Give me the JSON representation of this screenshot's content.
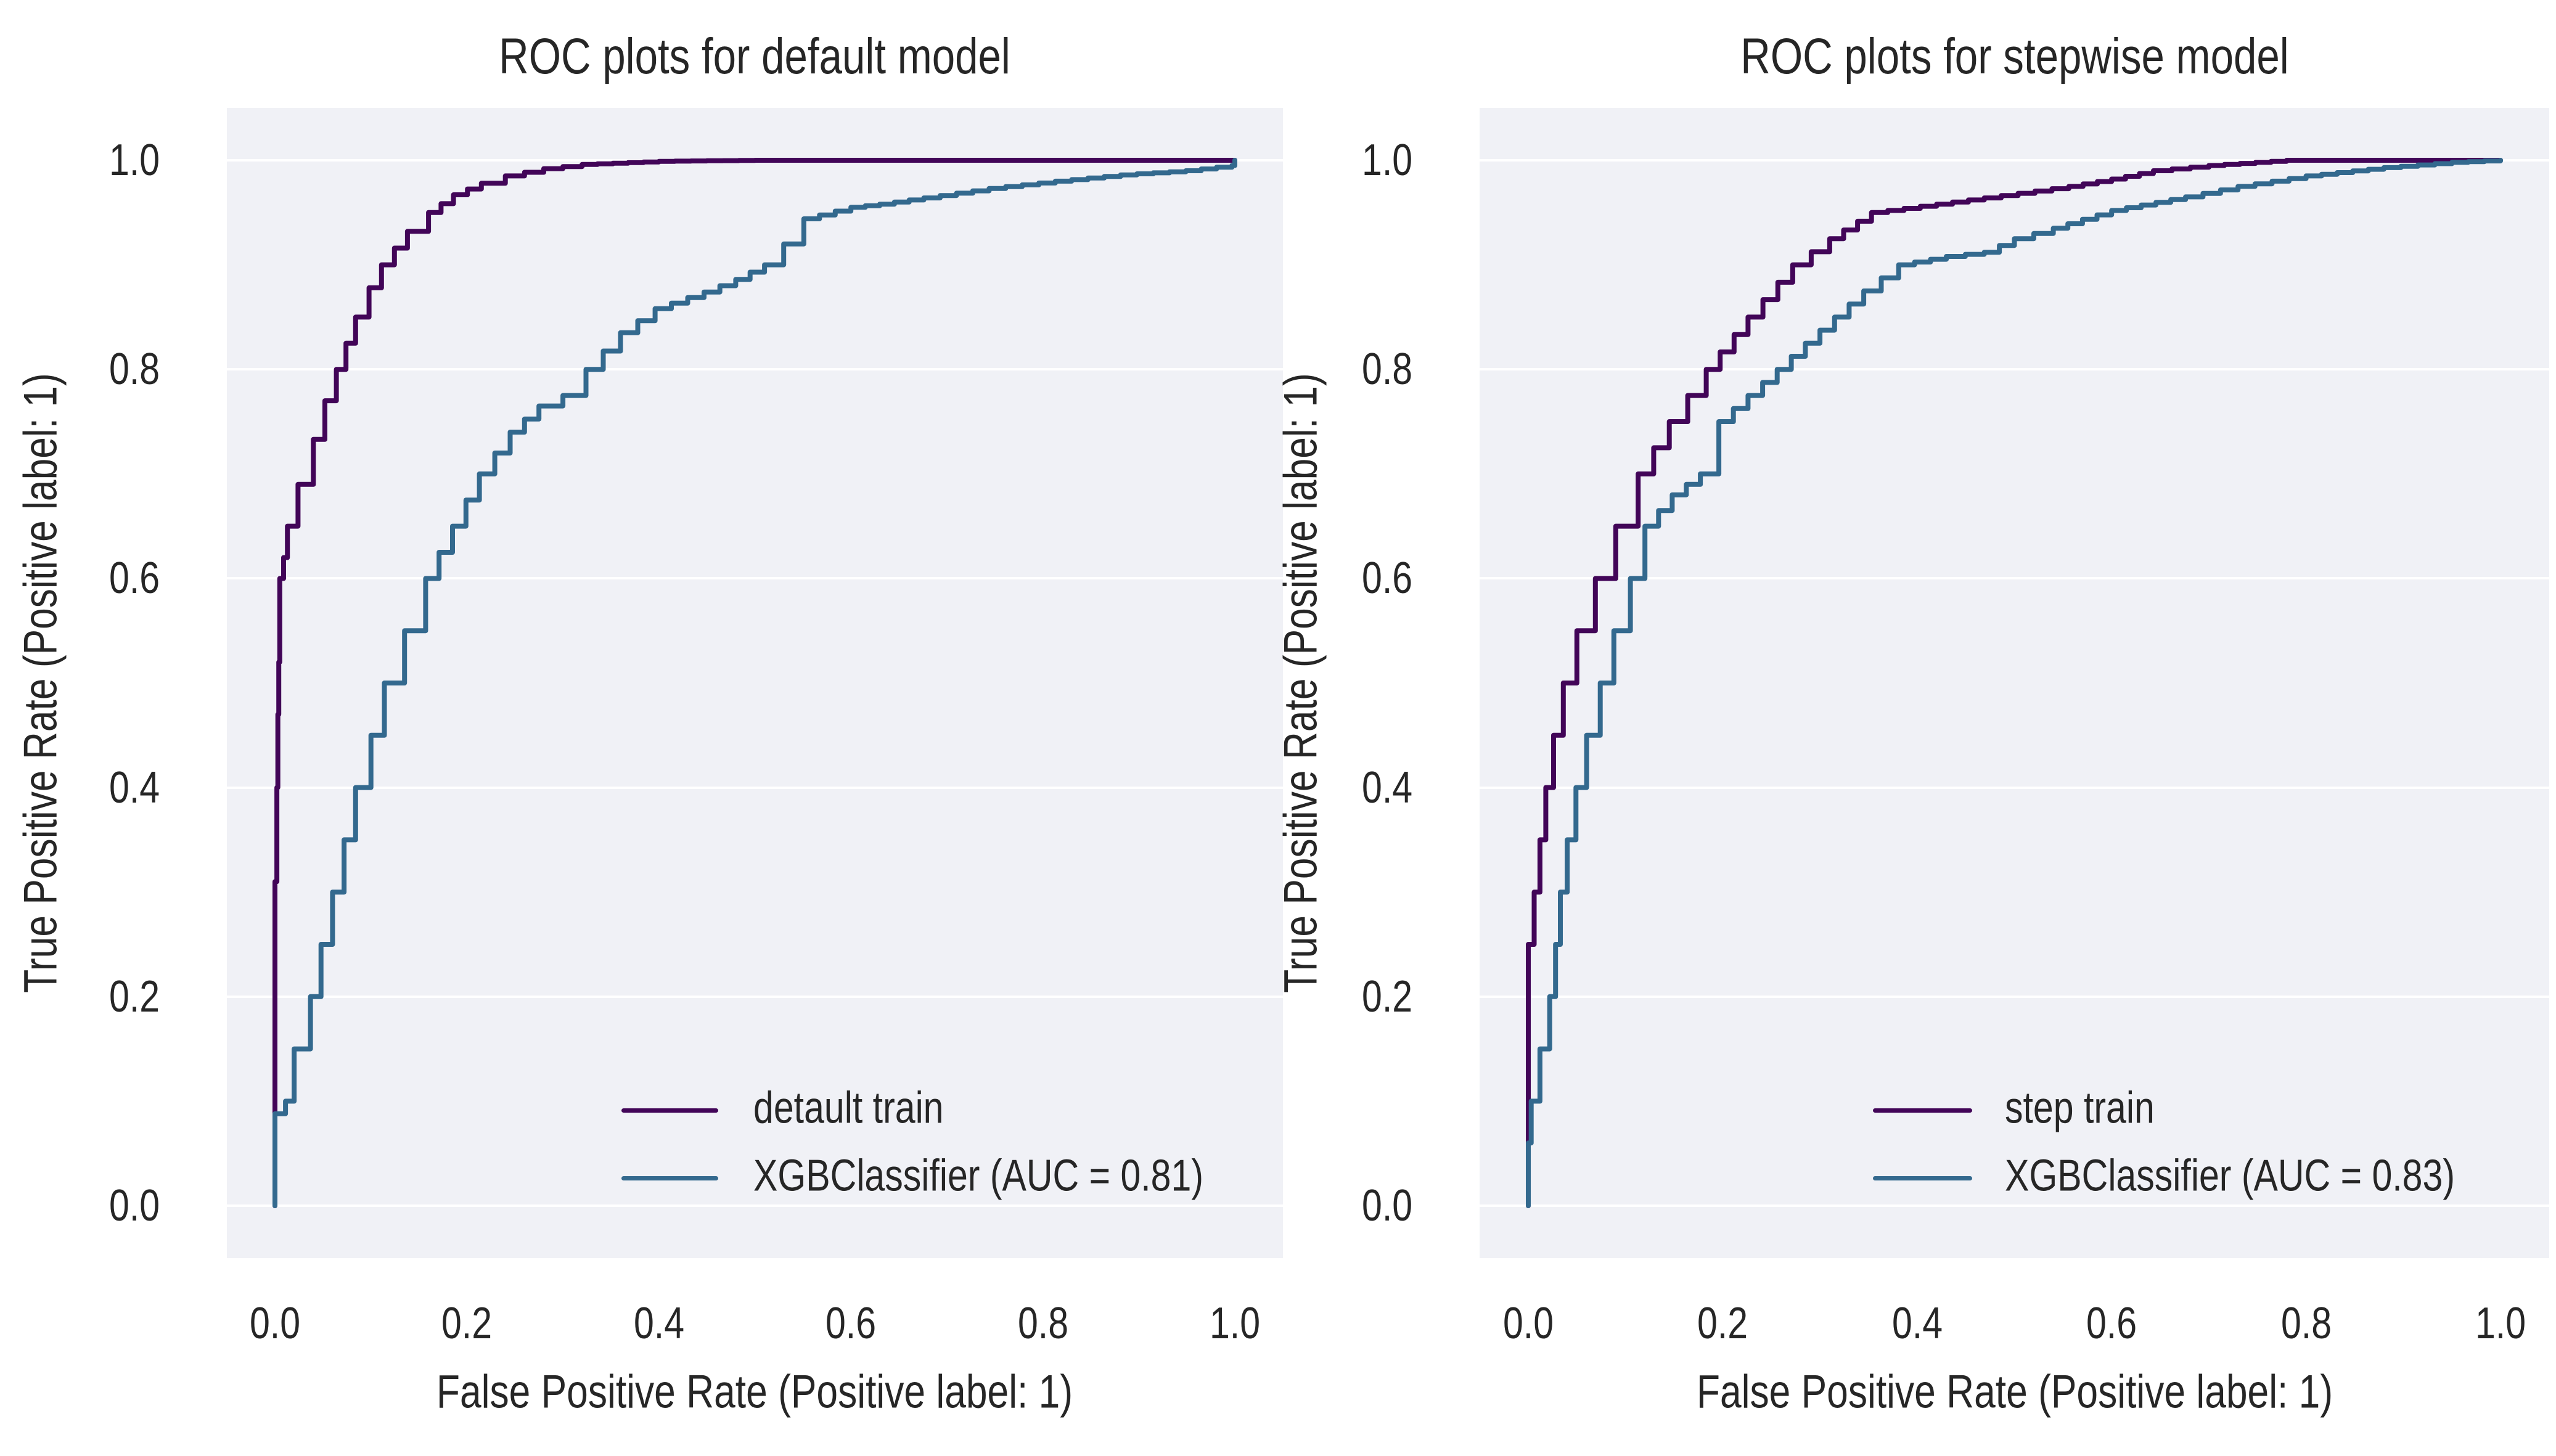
{
  "figure": {
    "background": "#ffffff",
    "panel_background": "#f0f1f6",
    "grid_color": "#ffffff",
    "text_color": "#262626",
    "train_color": "#420558",
    "xgb_color": "#33698e"
  },
  "chart_data": [
    {
      "type": "line",
      "title": "ROC plots for default model",
      "xlabel": "False Positive Rate (Positive label: 1)",
      "ylabel": "True Positive Rate (Positive label: 1)",
      "xlim": [
        -0.05,
        1.05
      ],
      "ylim": [
        -0.05,
        1.05
      ],
      "xtick_labels": [
        "0.0",
        "0.2",
        "0.4",
        "0.6",
        "0.8",
        "1.0"
      ],
      "ytick_labels": [
        "0.0",
        "0.2",
        "0.4",
        "0.6",
        "0.8",
        "1.0"
      ],
      "grid": "horizontal-only",
      "legend_position": "lower right",
      "series": [
        {
          "name": "detault train",
          "color": "#420558",
          "points": [
            [
              0,
              0
            ],
            [
              0,
              0.31
            ],
            [
              0.002,
              0.4
            ],
            [
              0.003,
              0.47
            ],
            [
              0.004,
              0.52
            ],
            [
              0.005,
              0.6
            ],
            [
              0.009,
              0.62
            ],
            [
              0.013,
              0.65
            ],
            [
              0.024,
              0.69
            ],
            [
              0.04,
              0.733
            ],
            [
              0.052,
              0.77
            ],
            [
              0.064,
              0.8
            ],
            [
              0.074,
              0.825
            ],
            [
              0.084,
              0.85
            ],
            [
              0.098,
              0.878
            ],
            [
              0.111,
              0.9
            ],
            [
              0.138,
              0.932
            ],
            [
              0.16,
              0.95
            ],
            [
              0.186,
              0.967
            ],
            [
              0.215,
              0.978
            ],
            [
              0.24,
              0.985
            ],
            [
              0.28,
              0.992
            ],
            [
              0.32,
              0.996
            ],
            [
              0.4,
              0.999
            ],
            [
              0.5,
              1.0
            ],
            [
              1,
              1
            ]
          ]
        },
        {
          "name": "XGBClassifier (AUC = 0.81)",
          "auc": 0.81,
          "color": "#33698e",
          "points": [
            [
              0,
              0
            ],
            [
              0,
              0.088
            ],
            [
              0.011,
              0.1
            ],
            [
              0.02,
              0.15
            ],
            [
              0.037,
              0.2
            ],
            [
              0.048,
              0.25
            ],
            [
              0.06,
              0.3
            ],
            [
              0.072,
              0.35
            ],
            [
              0.084,
              0.4
            ],
            [
              0.1,
              0.45
            ],
            [
              0.114,
              0.5
            ],
            [
              0.135,
              0.55
            ],
            [
              0.157,
              0.6
            ],
            [
              0.185,
              0.65
            ],
            [
              0.213,
              0.7
            ],
            [
              0.245,
              0.74
            ],
            [
              0.275,
              0.765
            ],
            [
              0.3,
              0.775
            ],
            [
              0.324,
              0.8
            ],
            [
              0.36,
              0.835
            ],
            [
              0.396,
              0.858
            ],
            [
              0.447,
              0.874
            ],
            [
              0.48,
              0.886
            ],
            [
              0.51,
              0.9
            ],
            [
              0.53,
              0.92
            ],
            [
              0.551,
              0.944
            ],
            [
              0.6,
              0.955
            ],
            [
              0.63,
              0.958
            ],
            [
              0.676,
              0.964
            ],
            [
              0.744,
              0.973
            ],
            [
              0.813,
              0.98
            ],
            [
              0.881,
              0.986
            ],
            [
              0.949,
              0.99
            ],
            [
              0.997,
              0.995
            ],
            [
              1,
              1
            ]
          ]
        }
      ]
    },
    {
      "type": "line",
      "title": "ROC plots for stepwise model",
      "xlabel": "False Positive Rate (Positive label: 1)",
      "ylabel": "True Positive Rate (Positive label: 1)",
      "xlim": [
        -0.05,
        1.05
      ],
      "ylim": [
        -0.05,
        1.05
      ],
      "xtick_labels": [
        "0.0",
        "0.2",
        "0.4",
        "0.6",
        "0.8",
        "1.0"
      ],
      "ytick_labels": [
        "0.0",
        "0.2",
        "0.4",
        "0.6",
        "0.8",
        "1.0"
      ],
      "grid": "horizontal-only",
      "legend_position": "lower right",
      "series": [
        {
          "name": "step train",
          "color": "#420558",
          "points": [
            [
              0,
              0
            ],
            [
              0,
              0.25
            ],
            [
              0.006,
              0.3
            ],
            [
              0.012,
              0.35
            ],
            [
              0.018,
              0.4
            ],
            [
              0.026,
              0.45
            ],
            [
              0.036,
              0.5
            ],
            [
              0.05,
              0.55
            ],
            [
              0.069,
              0.6
            ],
            [
              0.09,
              0.65
            ],
            [
              0.113,
              0.7
            ],
            [
              0.145,
              0.75
            ],
            [
              0.183,
              0.8
            ],
            [
              0.226,
              0.85
            ],
            [
              0.272,
              0.9
            ],
            [
              0.31,
              0.925
            ],
            [
              0.353,
              0.95
            ],
            [
              0.42,
              0.958
            ],
            [
              0.469,
              0.964
            ],
            [
              0.556,
              0.975
            ],
            [
              0.6,
              0.982
            ],
            [
              0.643,
              0.99
            ],
            [
              0.7,
              0.995
            ],
            [
              0.78,
              1.0
            ],
            [
              1,
              1
            ]
          ]
        },
        {
          "name": "XGBClassifier (AUC = 0.83)",
          "auc": 0.83,
          "color": "#33698e",
          "points": [
            [
              0,
              0
            ],
            [
              0,
              0.06
            ],
            [
              0.003,
              0.1
            ],
            [
              0.012,
              0.15
            ],
            [
              0.022,
              0.2
            ],
            [
              0.028,
              0.25
            ],
            [
              0.033,
              0.3
            ],
            [
              0.04,
              0.35
            ],
            [
              0.049,
              0.4
            ],
            [
              0.06,
              0.45
            ],
            [
              0.074,
              0.5
            ],
            [
              0.088,
              0.55
            ],
            [
              0.105,
              0.6
            ],
            [
              0.12,
              0.65
            ],
            [
              0.148,
              0.68
            ],
            [
              0.177,
              0.7
            ],
            [
              0.196,
              0.75
            ],
            [
              0.226,
              0.775
            ],
            [
              0.256,
              0.8
            ],
            [
              0.285,
              0.825
            ],
            [
              0.315,
              0.85
            ],
            [
              0.345,
              0.875
            ],
            [
              0.381,
              0.9
            ],
            [
              0.43,
              0.908
            ],
            [
              0.469,
              0.912
            ],
            [
              0.5,
              0.925
            ],
            [
              0.54,
              0.935
            ],
            [
              0.6,
              0.952
            ],
            [
              0.676,
              0.965
            ],
            [
              0.73,
              0.975
            ],
            [
              0.8,
              0.985
            ],
            [
              0.88,
              0.993
            ],
            [
              0.95,
              0.998
            ],
            [
              1,
              1
            ]
          ]
        }
      ]
    }
  ]
}
